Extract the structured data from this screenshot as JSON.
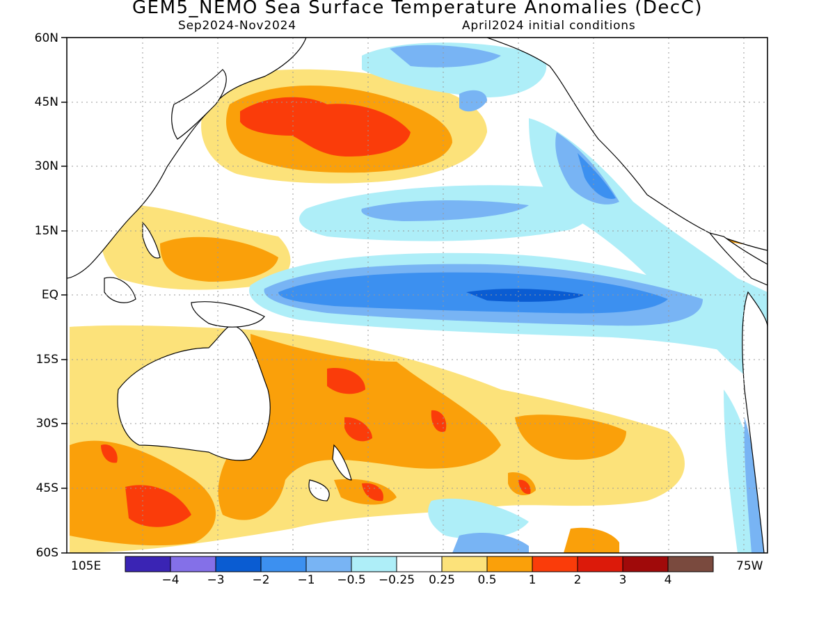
{
  "title": "GEM5_NEMO Sea Surface Temperature Anomalies (DecC)",
  "subtitle_left": "Sep2024-Nov2024",
  "subtitle_right": "April2024 initial conditions",
  "y_axis_labels": [
    "60N",
    "45N",
    "30N",
    "15N",
    "EQ",
    "15S",
    "30S",
    "45S",
    "60S"
  ],
  "x_axis_labels": {
    "left": "105E",
    "right": "75W"
  },
  "colorbar": {
    "colors": [
      "#3a24b4",
      "#8470e8",
      "#0a5cd2",
      "#3c90f0",
      "#78b4f4",
      "#aeeef8",
      "#ffffff",
      "#fce27a",
      "#faa00a",
      "#fa3c0a",
      "#dc1a0a",
      "#a00a0a",
      "#7a4a3e"
    ],
    "labels": [
      "-4",
      "-3",
      "-2",
      "-1",
      "-0.5",
      "-0.25",
      "0.25",
      "0.5",
      "1",
      "2",
      "3",
      "4"
    ]
  }
}
